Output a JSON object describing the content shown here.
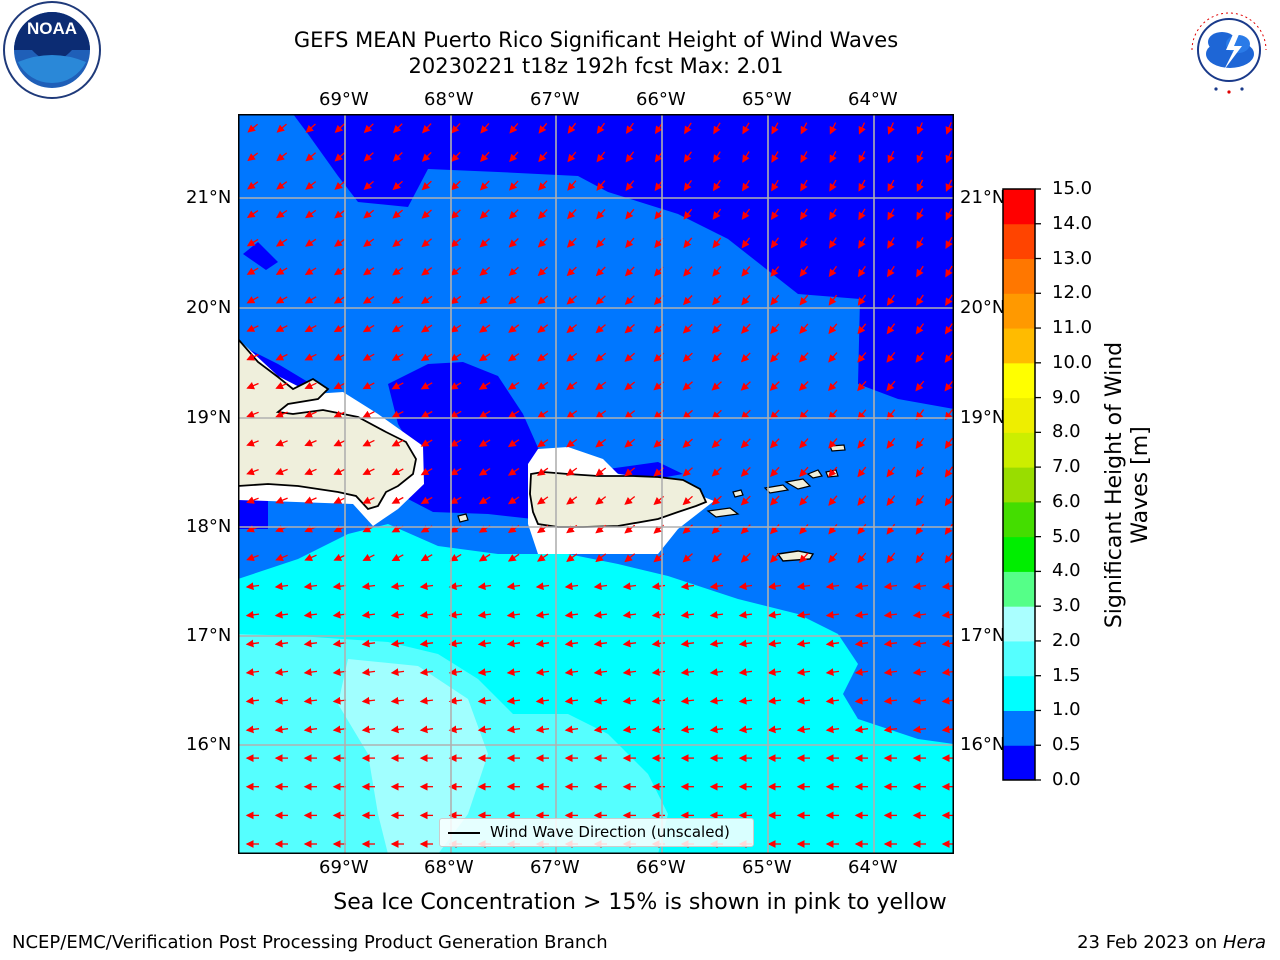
{
  "title": {
    "line1": "GEFS MEAN Puerto Rico Significant Height of Wind Waves",
    "line2": "20230221 t18z 192h fcst   Max: 2.01"
  },
  "map": {
    "lon_labels": [
      "69°W",
      "68°W",
      "67°W",
      "66°W",
      "65°W",
      "64°W"
    ],
    "lat_labels": [
      "21°N",
      "20°N",
      "19°N",
      "18°N",
      "17°N",
      "16°N"
    ],
    "legend_label": "Wind Wave Direction (unscaled)",
    "arrow_color": "#ff0000",
    "land_color": "#efefdc"
  },
  "colorbar": {
    "label_line1": "Significant Height of Wind",
    "label_line2": "Waves [m]",
    "ticks": [
      "15.0",
      "14.0",
      "13.0",
      "12.0",
      "11.0",
      "10.0",
      "9.0",
      "8.0",
      "7.0",
      "6.0",
      "5.0",
      "4.0",
      "3.0",
      "2.0",
      "1.5",
      "1.0",
      "0.5",
      "0.0"
    ],
    "colors_bottom_to_top": [
      "#0000ff",
      "#0077ff",
      "#00ffff",
      "#55ffff",
      "#aaffff",
      "#55ff88",
      "#00ee00",
      "#44dd00",
      "#99dd00",
      "#ccee00",
      "#eeee00",
      "#ffff00",
      "#ffbb00",
      "#ff9900",
      "#ff7700",
      "#ff4400",
      "#ff0000"
    ]
  },
  "subtitle": "Sea Ice Concentration > 15% is shown in pink to yellow",
  "footer": {
    "left": "NCEP/EMC/Verification Post Processing Product Generation Branch",
    "right_prefix": "23 Feb 2023 on ",
    "right_host": "Hera"
  },
  "logos": {
    "noaa": "NOAA",
    "nws_ring": "NATIONAL WEATHER SERVICE"
  }
}
